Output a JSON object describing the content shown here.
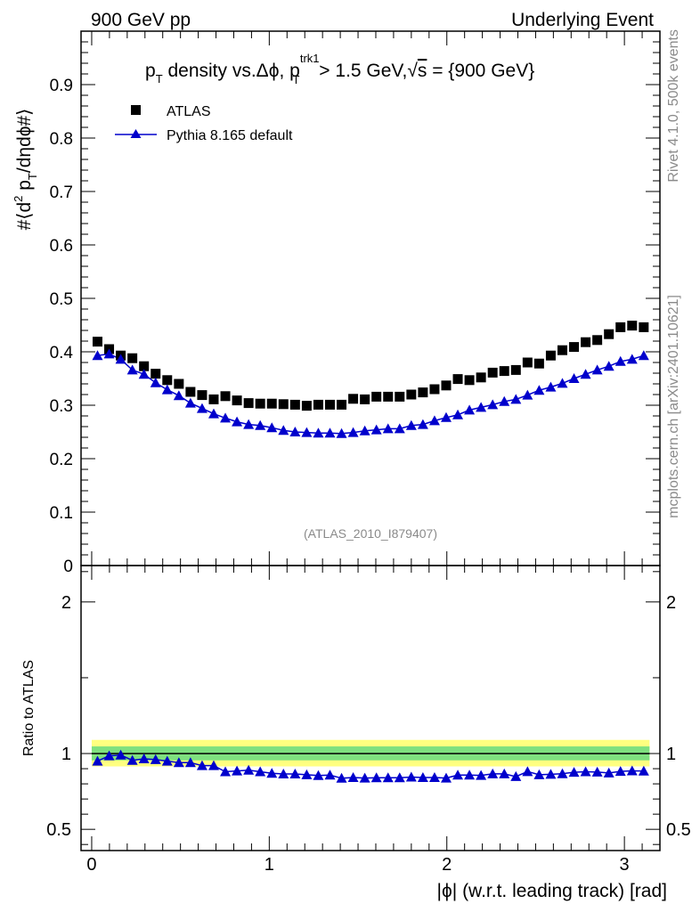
{
  "header": {
    "left": "900 GeV pp",
    "right": "Underlying Event"
  },
  "side": {
    "rivet": "Rivet 4.1.0,  500k events",
    "mcplots": "mcplots.cern.ch [arXiv:2401.10621]"
  },
  "chart_data": [
    {
      "type": "scatter",
      "title_parts": {
        "a": "p",
        "a_sub": "T",
        "b": " density vs.Δϕ, p",
        "b_sup": "trk1",
        "b_sub": "T",
        "c": " > 1.5 GeV,",
        "root": "√",
        "s": "s",
        "d": " = {900 GeV}"
      },
      "ylabel_parts": {
        "a": "#⟨d",
        "sup": "2",
        "b": " p",
        "sub": "T",
        "c": "/dηdϕ#⟩"
      },
      "watermark": "(ATLAS_2010_I879407)",
      "ylim": [
        0,
        1.0
      ],
      "xlim": [
        -0.06,
        3.2
      ],
      "ytick_labels": [
        "0",
        "0.1",
        "0.2",
        "0.3",
        "0.4",
        "0.5",
        "0.6",
        "0.7",
        "0.8",
        "0.9"
      ],
      "ytick_values": [
        0,
        0.1,
        0.2,
        0.3,
        0.4,
        0.5,
        0.6,
        0.7,
        0.8,
        0.9
      ],
      "legend": {
        "atlas": "ATLAS",
        "pythia": "Pythia 8.165 default",
        "placement": "top-left"
      },
      "x": [
        0.0327,
        0.0982,
        0.1636,
        0.2291,
        0.2945,
        0.36,
        0.4254,
        0.4909,
        0.5563,
        0.6218,
        0.6872,
        0.7527,
        0.8181,
        0.8836,
        0.949,
        1.0145,
        1.0799,
        1.1454,
        1.2108,
        1.2763,
        1.3417,
        1.4072,
        1.4726,
        1.5381,
        1.6035,
        1.669,
        1.7344,
        1.7999,
        1.8653,
        1.9308,
        1.9962,
        2.0617,
        2.1271,
        2.1926,
        2.258,
        2.3235,
        2.3889,
        2.4544,
        2.5198,
        2.5853,
        2.6507,
        2.7162,
        2.7816,
        2.8471,
        2.9125,
        2.978,
        3.0434,
        3.1089
      ],
      "series": [
        {
          "name": "ATLAS",
          "marker": "square",
          "color": "#000000",
          "values": [
            0.419,
            0.405,
            0.393,
            0.388,
            0.373,
            0.359,
            0.347,
            0.34,
            0.325,
            0.319,
            0.311,
            0.317,
            0.309,
            0.304,
            0.303,
            0.303,
            0.302,
            0.301,
            0.299,
            0.301,
            0.301,
            0.301,
            0.312,
            0.311,
            0.316,
            0.316,
            0.316,
            0.32,
            0.324,
            0.33,
            0.337,
            0.349,
            0.347,
            0.352,
            0.361,
            0.364,
            0.366,
            0.38,
            0.378,
            0.393,
            0.403,
            0.409,
            0.418,
            0.422,
            0.433,
            0.446,
            0.449,
            0.446
          ]
        },
        {
          "name": "Pythia 8.165 default",
          "marker": "triangle",
          "color": "#0000cc",
          "values": [
            0.393,
            0.396,
            0.386,
            0.366,
            0.358,
            0.342,
            0.329,
            0.318,
            0.304,
            0.294,
            0.284,
            0.276,
            0.269,
            0.264,
            0.262,
            0.258,
            0.253,
            0.25,
            0.249,
            0.248,
            0.248,
            0.247,
            0.249,
            0.252,
            0.254,
            0.256,
            0.256,
            0.262,
            0.264,
            0.271,
            0.277,
            0.282,
            0.291,
            0.296,
            0.301,
            0.307,
            0.311,
            0.319,
            0.328,
            0.334,
            0.341,
            0.35,
            0.358,
            0.366,
            0.373,
            0.382,
            0.386,
            0.393
          ]
        }
      ]
    },
    {
      "type": "scatter",
      "ylabel": "Ratio to ATLAS",
      "xlabel_parts": {
        "bar": "|",
        "phi": "ϕ",
        "rest": " (w.r.t. leading track) [rad]"
      },
      "ylim": [
        0.36,
        2.24
      ],
      "xlim": [
        -0.06,
        3.2
      ],
      "ytick_labels": [
        "0.5",
        "1",
        "2"
      ],
      "ytick_values": [
        0.5,
        1,
        2
      ],
      "xtick_labels": [
        "0",
        "1",
        "2",
        "3"
      ],
      "xtick_values": [
        0,
        1,
        2,
        3
      ],
      "band_color_inner": "#7fe07f",
      "band_color_outer": "#ffff80",
      "band_inner": [
        0.955,
        1.047
      ],
      "band_outer": [
        0.915,
        1.09
      ],
      "series": [
        {
          "name": "Pythia 8.165 default / ATLAS",
          "marker": "triangle",
          "color": "#0000cc",
          "values": [
            0.95,
            0.985,
            0.99,
            0.955,
            0.965,
            0.96,
            0.95,
            0.94,
            0.94,
            0.92,
            0.92,
            0.88,
            0.885,
            0.89,
            0.88,
            0.87,
            0.865,
            0.865,
            0.86,
            0.855,
            0.858,
            0.837,
            0.842,
            0.838,
            0.84,
            0.84,
            0.84,
            0.845,
            0.842,
            0.842,
            0.838,
            0.858,
            0.858,
            0.856,
            0.866,
            0.866,
            0.848,
            0.881,
            0.86,
            0.863,
            0.867,
            0.876,
            0.88,
            0.878,
            0.872,
            0.882,
            0.886,
            0.884
          ]
        }
      ]
    }
  ]
}
